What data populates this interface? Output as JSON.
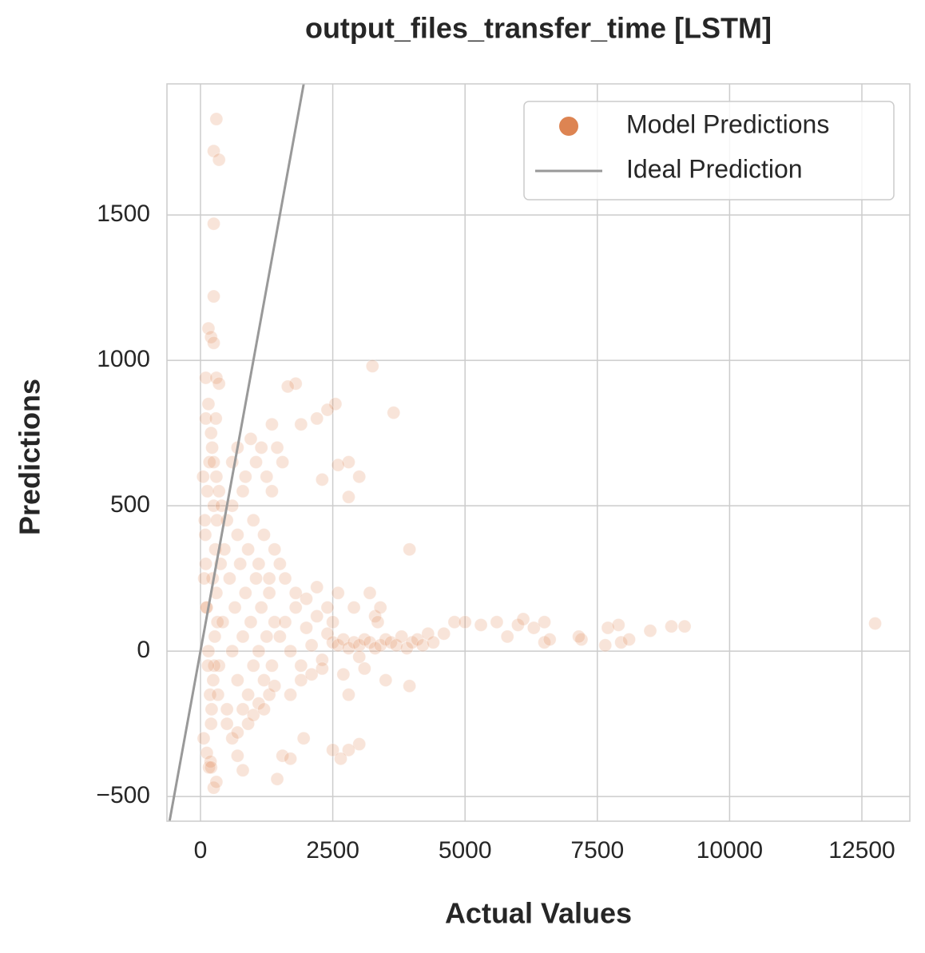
{
  "chart_data": {
    "type": "scatter",
    "title": "output_files_transfer_time [LSTM]",
    "x_label": "Actual Values",
    "y_label": "Predictions",
    "xlim": [
      -634,
      13406
    ],
    "ylim": [
      -585,
      1951
    ],
    "xticks": [
      0,
      2500,
      5000,
      7500,
      10000,
      12500
    ],
    "yticks": [
      {
        "value": -500,
        "label": "−500"
      },
      0,
      500,
      1000,
      1500
    ],
    "grid": true,
    "legend": "upper right",
    "series": [
      {
        "name": "Model Predictions",
        "color": "#dd8452",
        "type": "scatter",
        "x": [
          50,
          80,
          100,
          120,
          150,
          180,
          200,
          220,
          250,
          280,
          300,
          320,
          350,
          60,
          90,
          130,
          170,
          210,
          240,
          270,
          100,
          150,
          200,
          250,
          300,
          350,
          400,
          120,
          160,
          190,
          230,
          260,
          290,
          70,
          110,
          140,
          310,
          330,
          380,
          420,
          450,
          500,
          550,
          600,
          650,
          700,
          750,
          800,
          850,
          900,
          950,
          1000,
          1050,
          1100,
          1150,
          1200,
          1250,
          1300,
          1350,
          1400,
          500,
          600,
          700,
          800,
          900,
          1000,
          1100,
          1200,
          1300,
          1400,
          500,
          600,
          700,
          800,
          900,
          1000,
          1100,
          1200,
          1300,
          1400,
          1500,
          1600,
          1700,
          1800,
          1900,
          2000,
          2100,
          2200,
          2300,
          2400,
          1500,
          1600,
          1700,
          1800,
          1900,
          2000,
          2100,
          2200,
          2300,
          2400,
          600,
          700,
          850,
          950,
          1050,
          1150,
          1250,
          1350,
          1450,
          1550,
          2500,
          2600,
          2700,
          2800,
          2900,
          3000,
          3100,
          3200,
          3300,
          3400,
          3500,
          3600,
          3700,
          3800,
          3900,
          4000,
          4100,
          4200,
          4300,
          4400,
          2500,
          2700,
          2900,
          3100,
          3300,
          3500,
          2600,
          2800,
          3000,
          4600,
          300,
          250,
          350,
          250,
          250,
          150,
          200,
          250,
          100,
          300,
          350,
          3250,
          1800,
          1650,
          3650,
          2550,
          2400,
          2200,
          1900,
          1350,
          3950,
          3000,
          2800,
          2600,
          2800,
          2300,
          3200,
          3400,
          3350,
          3950,
          3000,
          2500,
          2800,
          2650,
          1950,
          1550,
          1450,
          1700,
          800,
          700,
          250,
          300,
          200,
          4800,
          5000,
          5300,
          5600,
          5800,
          6000,
          6100,
          6300,
          6500,
          6600,
          6500,
          7200,
          7150,
          7650,
          7700,
          7950,
          7900,
          8100,
          8500,
          8900,
          9150,
          12750
        ],
        "values": [
          600,
          450,
          300,
          150,
          0,
          -150,
          -250,
          700,
          500,
          350,
          200,
          100,
          -50,
          -300,
          400,
          550,
          650,
          -200,
          -100,
          50,
          800,
          850,
          750,
          650,
          600,
          550,
          500,
          -350,
          -400,
          -380,
          250,
          -50,
          800,
          250,
          150,
          -50,
          450,
          -150,
          300,
          100,
          350,
          -200,
          250,
          0,
          150,
          -100,
          300,
          50,
          200,
          -150,
          100,
          -50,
          250,
          0,
          150,
          -100,
          50,
          200,
          -50,
          100,
          450,
          500,
          400,
          550,
          350,
          450,
          300,
          400,
          250,
          350,
          -250,
          -300,
          -280,
          -200,
          -250,
          -220,
          -180,
          -200,
          -150,
          -120,
          50,
          100,
          0,
          150,
          -50,
          80,
          20,
          120,
          -30,
          60,
          300,
          250,
          -150,
          200,
          -100,
          180,
          -80,
          220,
          -60,
          150,
          650,
          700,
          600,
          730,
          650,
          700,
          600,
          550,
          700,
          650,
          30,
          20,
          40,
          10,
          30,
          20,
          40,
          30,
          10,
          20,
          40,
          30,
          20,
          50,
          10,
          30,
          40,
          20,
          60,
          30,
          100,
          -80,
          150,
          -60,
          120,
          -100,
          200,
          -150,
          -20,
          60,
          1830,
          1720,
          1690,
          1470,
          1220,
          1110,
          1080,
          1060,
          940,
          940,
          920,
          980,
          920,
          910,
          820,
          850,
          830,
          800,
          780,
          780,
          350,
          600,
          650,
          640,
          530,
          590,
          200,
          150,
          100,
          -120,
          -320,
          -340,
          -340,
          -370,
          -300,
          -360,
          -440,
          -370,
          -410,
          -360,
          -470,
          -450,
          -400,
          100,
          100,
          90,
          100,
          50,
          90,
          110,
          80,
          30,
          40,
          100,
          40,
          50,
          20,
          80,
          30,
          90,
          40,
          70,
          85,
          85,
          95
        ]
      },
      {
        "name": "Ideal Prediction",
        "color": "#999999",
        "type": "line",
        "x": [
          -600,
          2000
        ],
        "values": [
          -600,
          2000
        ]
      }
    ]
  }
}
